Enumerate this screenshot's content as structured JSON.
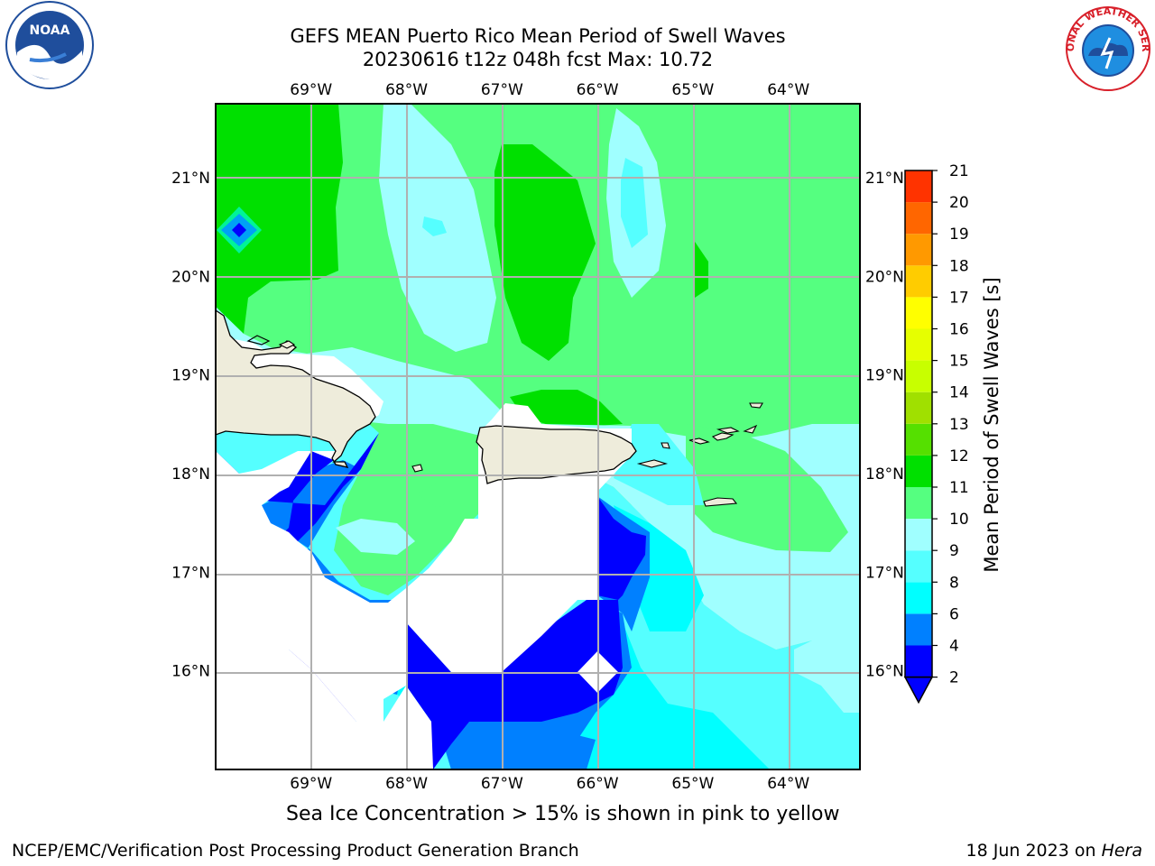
{
  "title": {
    "line1": "GEFS MEAN Puerto Rico Mean Period of Swell Waves",
    "line2": "20230616 t12z 048h fcst   Max: 10.72"
  },
  "map": {
    "lon_ticks": [
      "69°W",
      "68°W",
      "67°W",
      "66°W",
      "65°W",
      "64°W"
    ],
    "lat_ticks": [
      "21°N",
      "20°N",
      "19°N",
      "18°N",
      "17°N",
      "16°N"
    ],
    "lon_values": [
      -69,
      -68,
      -67,
      -66,
      -65,
      -64
    ],
    "lat_values": [
      21,
      20,
      19,
      18,
      17,
      16
    ],
    "extent": {
      "lon_min": -70.0,
      "lon_max": -63.25,
      "lat_min": 15.0,
      "lat_max": 21.75
    },
    "land_color": "#eeecdb",
    "grid_color": "#b0b0b0"
  },
  "colorbar": {
    "label": "Mean Period of Swell Waves [s]",
    "ticks": [
      "2",
      "4",
      "6",
      "8",
      "9",
      "10",
      "11",
      "12",
      "13",
      "14",
      "15",
      "16",
      "17",
      "18",
      "19",
      "20",
      "21"
    ],
    "colors": [
      "#0000ff",
      "#0080ff",
      "#00ffff",
      "#55ffff",
      "#a0ffff",
      "#55ff80",
      "#00e000",
      "#55e000",
      "#a0e000",
      "#c8ff00",
      "#e6ff00",
      "#ffff00",
      "#ffcc00",
      "#ff9900",
      "#ff6600",
      "#ff3300",
      "#ff0000"
    ],
    "extend_min_color": "#0000ff"
  },
  "note": "Sea Ice Concentration > 15% is shown in pink to yellow",
  "footer": {
    "left": "NCEP/EMC/Verification Post Processing Product Generation Branch",
    "date": "18 Jun 2023 on ",
    "machine": "Hera"
  },
  "logos": {
    "noaa_text": "NOAA",
    "nws_text": "NATIONAL WEATHER SERVICE",
    "noaa_color": "#1f4e9c",
    "nws_color": "#d8202a"
  }
}
